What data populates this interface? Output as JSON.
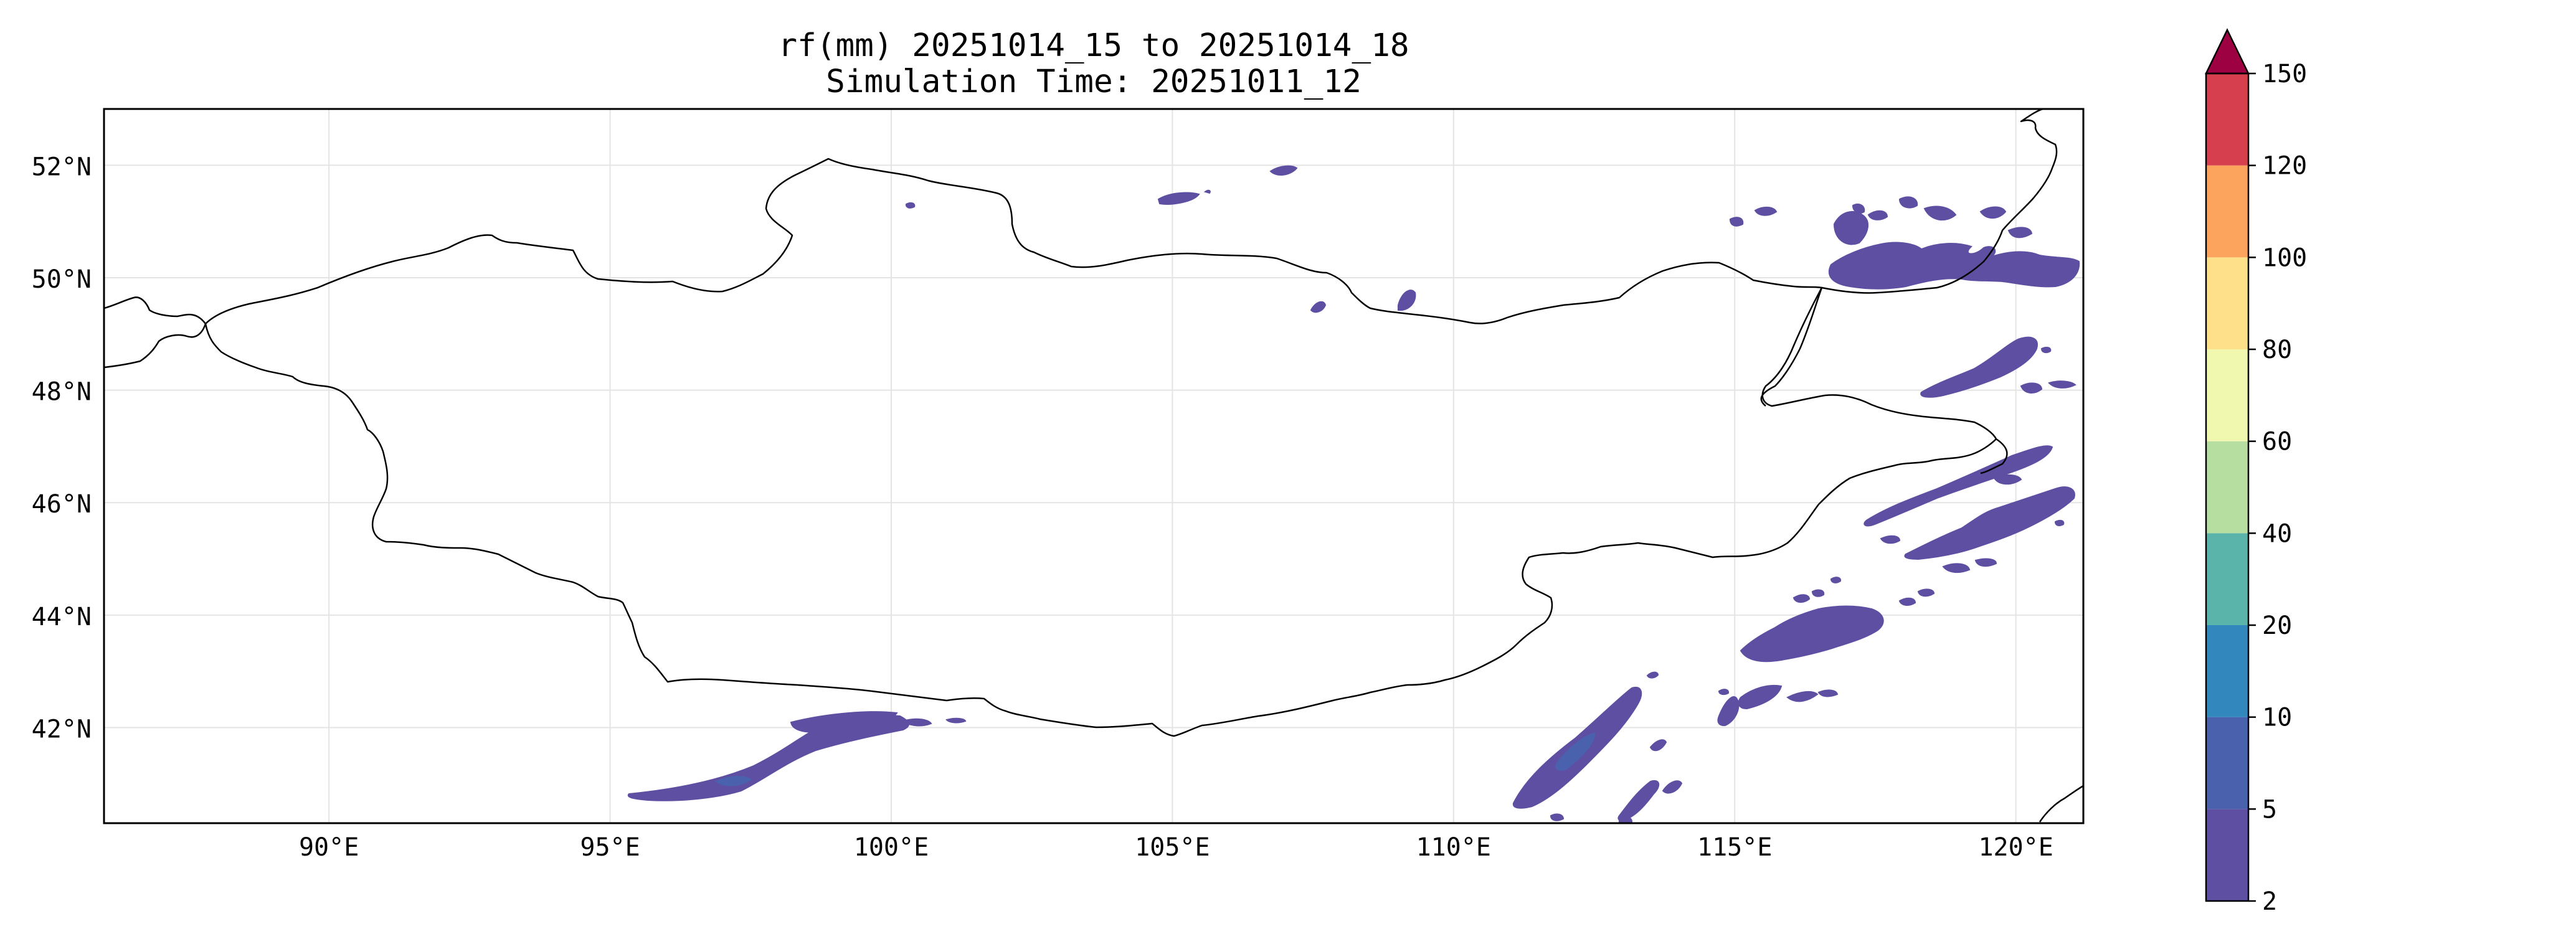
{
  "title": {
    "line1": "rf(mm) 20251014_15 to 20251014_18",
    "line2": "Simulation Time: 20251011_12"
  },
  "map": {
    "extent": {
      "lon": [
        86,
        121.2
      ],
      "lat": [
        40.3,
        53
      ]
    },
    "grid": true,
    "lat_ticks": [
      {
        "value": 52,
        "label": "52°N"
      },
      {
        "value": 50,
        "label": "50°N"
      },
      {
        "value": 48,
        "label": "48°N"
      },
      {
        "value": 46,
        "label": "46°N"
      },
      {
        "value": 44,
        "label": "44°N"
      },
      {
        "value": 42,
        "label": "42°N"
      }
    ],
    "lon_ticks": [
      {
        "value": 90,
        "label": "90°E"
      },
      {
        "value": 95,
        "label": "95°E"
      },
      {
        "value": 100,
        "label": "100°E"
      },
      {
        "value": 105,
        "label": "105°E"
      },
      {
        "value": 110,
        "label": "110°E"
      },
      {
        "value": 115,
        "label": "115°E"
      },
      {
        "value": 120,
        "label": "120°E"
      }
    ]
  },
  "colorbar": {
    "levels": [
      "2",
      "5",
      "10",
      "20",
      "40",
      "60",
      "80",
      "100",
      "120",
      "150"
    ],
    "colors": [
      "#5e4fa2",
      "#4a62ae",
      "#3288bd",
      "#5ab4a9",
      "#b5dea0",
      "#f0f8b0",
      "#fee08b",
      "#fca35d",
      "#d6404e",
      "#9e0142"
    ],
    "extend": "max"
  }
}
